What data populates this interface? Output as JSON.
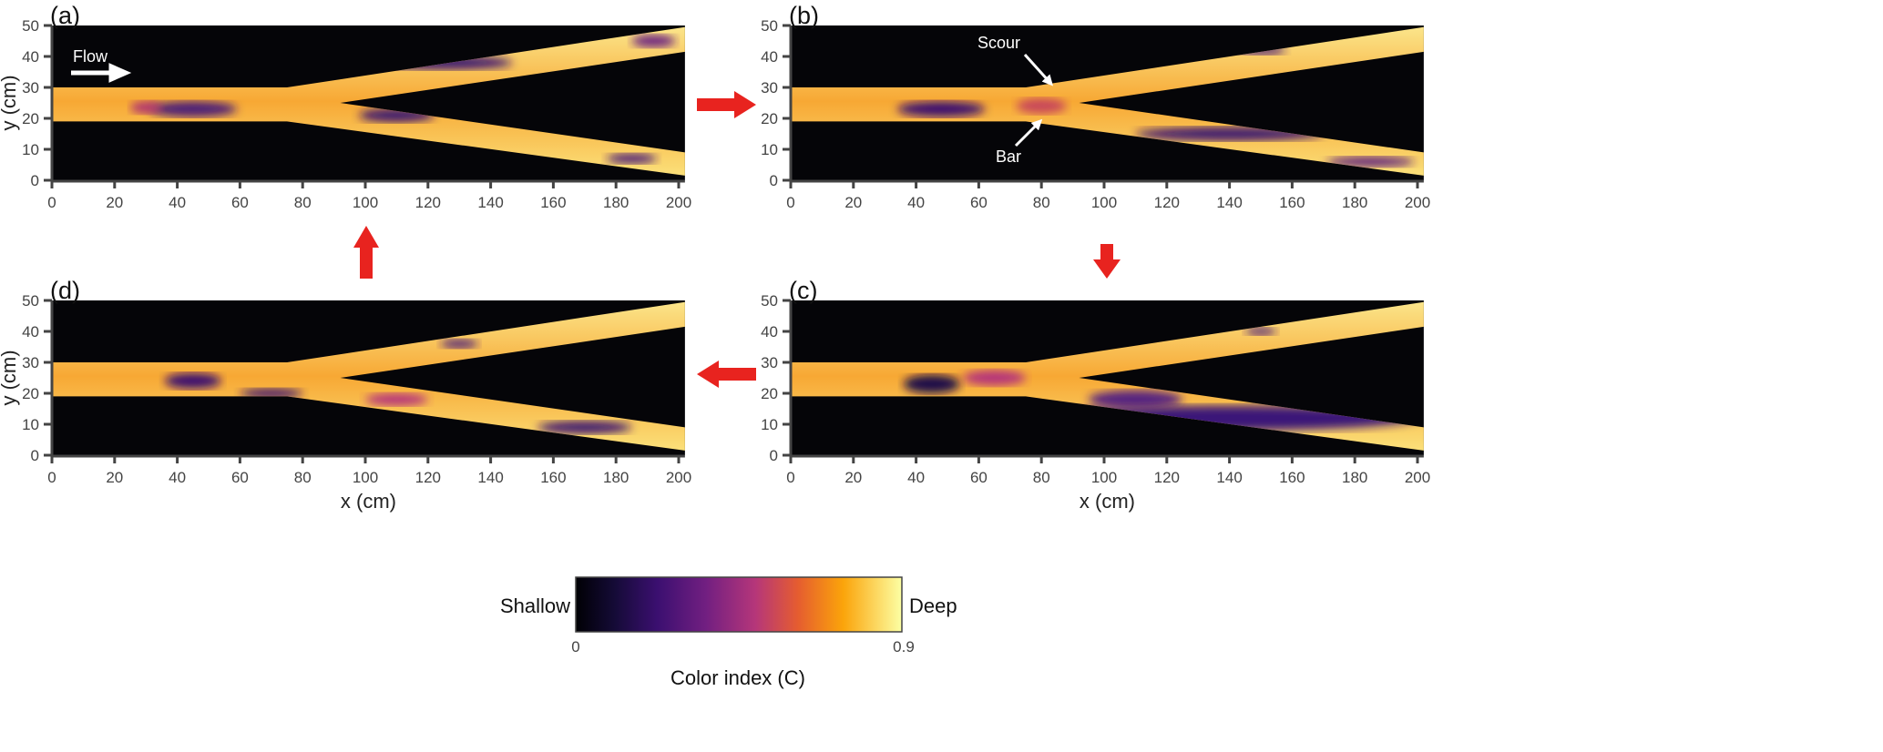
{
  "chart_data": {
    "type": "heatmap",
    "description_of_axes": "channel bed color index maps",
    "xlabel": "x (cm)",
    "ylabel": "y (cm)",
    "xlim": [
      0,
      202
    ],
    "ylim": [
      0,
      50
    ],
    "xticks": [
      0,
      20,
      40,
      60,
      80,
      100,
      120,
      140,
      160,
      180,
      200
    ],
    "yticks": [
      0,
      10,
      20,
      30,
      40,
      50
    ],
    "panels": [
      {
        "id": "a",
        "label": "(a)",
        "annotations": [
          "Flow"
        ]
      },
      {
        "id": "b",
        "label": "(b)",
        "annotations": [
          "Scour",
          "Bar"
        ]
      },
      {
        "id": "c",
        "label": "(c)",
        "annotations": []
      },
      {
        "id": "d",
        "label": "(d)",
        "annotations": []
      }
    ],
    "sequence": [
      "a",
      "b",
      "c",
      "d",
      "a"
    ],
    "colorbar": {
      "title": "Color index (C)",
      "min": 0,
      "max": 0.9,
      "min_label": "0",
      "max_label": "0.9",
      "low_end_label": "Shallow",
      "high_end_label": "Deep",
      "colormap": "inferno"
    }
  },
  "annotations": {
    "flow": "Flow",
    "scour": "Scour",
    "bar": "Bar"
  },
  "colors": {
    "arrow": "#e8231f",
    "background": "#050508",
    "axis": "#444444"
  }
}
